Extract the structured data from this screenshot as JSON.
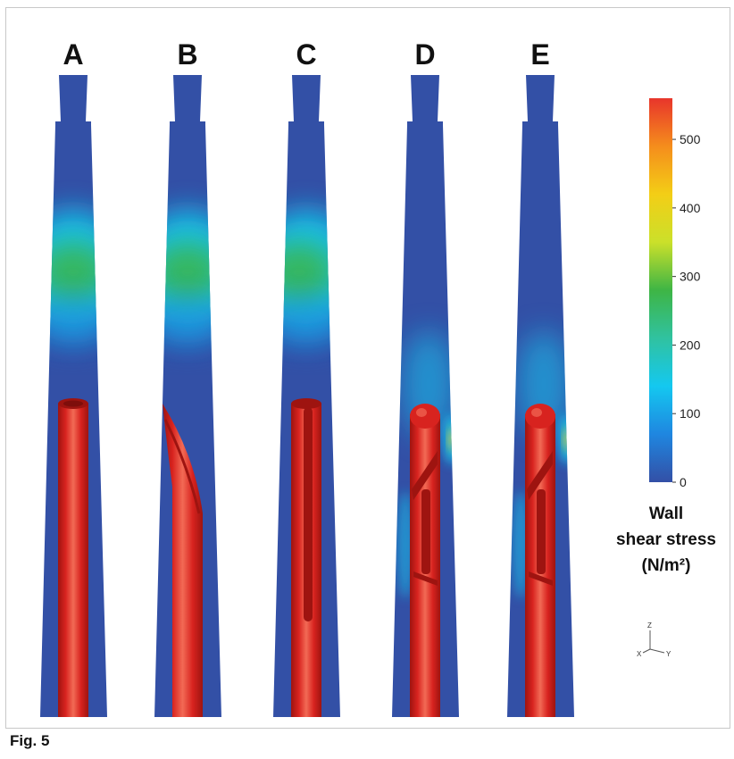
{
  "figure": {
    "caption": "Fig. 5",
    "colors": {
      "base": "#3350a6",
      "cannula": "#d8231f",
      "cannula_shade": "#9e1410",
      "cannula_highlight": "#f26a55"
    },
    "panels": [
      {
        "label": "A",
        "tip": "open-round"
      },
      {
        "label": "B",
        "tip": "bevel"
      },
      {
        "label": "C",
        "tip": "slot"
      },
      {
        "label": "D",
        "tip": "side-port"
      },
      {
        "label": "E",
        "tip": "side-port"
      }
    ]
  },
  "colorbar": {
    "min": 0,
    "max": 560,
    "ticks": [
      "0",
      "100",
      "200",
      "300",
      "400",
      "500"
    ],
    "title_line1": "Wall",
    "title_line2": "shear stress",
    "title_line3": "(N/m²)",
    "stops": [
      "#3350a6",
      "#1f86e0",
      "#14c8f0",
      "#30c2a0",
      "#3eb545",
      "#cbe02a",
      "#f3ce16",
      "#f58d1c",
      "#e8352b"
    ]
  },
  "axis_triad": {
    "z": "Z",
    "x": "X",
    "y": "Y"
  }
}
